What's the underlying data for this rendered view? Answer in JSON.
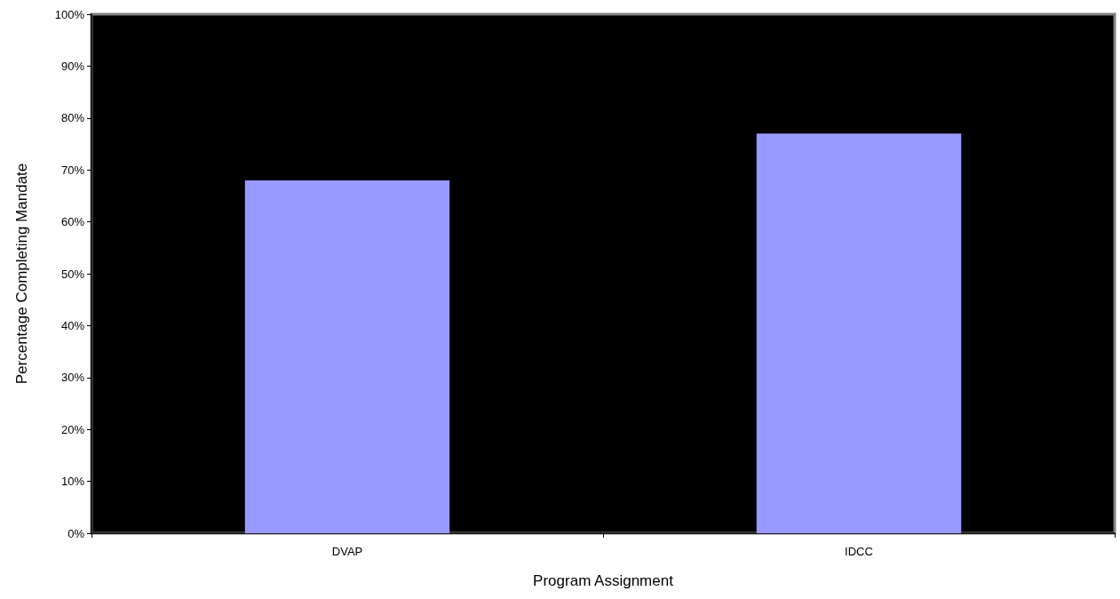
{
  "chart_data": {
    "type": "bar",
    "xlabel": "Program Assignment",
    "ylabel": "Percentage Completing Mandate",
    "categories": [
      "DVAP",
      "IDCC"
    ],
    "values": [
      68,
      77
    ],
    "color": "#9999ff",
    "ylim": [
      0,
      100
    ],
    "yticks": [
      {
        "value": 0,
        "label": "0%"
      },
      {
        "value": 10,
        "label": "10%"
      },
      {
        "value": 20,
        "label": "20%"
      },
      {
        "value": 30,
        "label": "30%"
      },
      {
        "value": 40,
        "label": "40%"
      },
      {
        "value": 50,
        "label": "50%"
      },
      {
        "value": 60,
        "label": "60%"
      },
      {
        "value": 70,
        "label": "70%"
      },
      {
        "value": 80,
        "label": "80%"
      },
      {
        "value": 90,
        "label": "90%"
      },
      {
        "value": 100,
        "label": "100%"
      }
    ],
    "grid": false
  }
}
